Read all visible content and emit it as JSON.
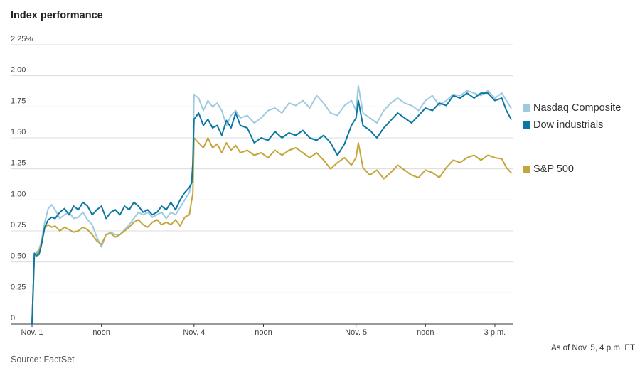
{
  "chart_data": {
    "type": "line",
    "title": "Index performance",
    "xlabel": "",
    "ylabel": "",
    "ylim": [
      0,
      2.25
    ],
    "y_ticks": [
      {
        "value": 0,
        "label": "0"
      },
      {
        "value": 0.25,
        "label": "0.25"
      },
      {
        "value": 0.5,
        "label": "0.50"
      },
      {
        "value": 0.75,
        "label": "0.75"
      },
      {
        "value": 1.0,
        "label": "1.00"
      },
      {
        "value": 1.25,
        "label": "1.25"
      },
      {
        "value": 1.5,
        "label": "1.50"
      },
      {
        "value": 1.75,
        "label": "1.75"
      },
      {
        "value": 2.0,
        "label": "2.00"
      },
      {
        "value": 2.25,
        "label": "2.25%"
      }
    ],
    "x_range": [
      0,
      20.8
    ],
    "x_units": "trading hours since Nov. 1 open",
    "x_ticks": [
      {
        "value": 0,
        "label": "Nov. 1"
      },
      {
        "value": 3.0,
        "label": "noon"
      },
      {
        "value": 7.0,
        "label": "Nov. 4"
      },
      {
        "value": 10.0,
        "label": "noon"
      },
      {
        "value": 14.0,
        "label": "Nov. 5"
      },
      {
        "value": 17.0,
        "label": "noon"
      },
      {
        "value": 20.0,
        "label": "3 p.m."
      }
    ],
    "series": [
      {
        "name": "Nasdaq Composite",
        "color": "#9ecae1",
        "x": [
          0,
          0.1,
          0.2,
          0.3,
          0.4,
          0.55,
          0.7,
          0.85,
          1.0,
          1.2,
          1.4,
          1.6,
          1.8,
          2.0,
          2.2,
          2.4,
          2.6,
          2.8,
          3.0,
          3.2,
          3.4,
          3.6,
          3.8,
          4.0,
          4.2,
          4.4,
          4.6,
          4.8,
          5.0,
          5.2,
          5.4,
          5.6,
          5.8,
          6.0,
          6.2,
          6.4,
          6.6,
          6.8,
          6.9,
          6.95,
          7.0,
          7.2,
          7.4,
          7.6,
          7.8,
          8.0,
          8.2,
          8.4,
          8.6,
          8.8,
          9.0,
          9.3,
          9.6,
          9.9,
          10.2,
          10.5,
          10.8,
          11.1,
          11.4,
          11.7,
          12.0,
          12.3,
          12.6,
          12.9,
          13.2,
          13.5,
          13.8,
          14.0,
          14.1,
          14.3,
          14.6,
          14.9,
          15.2,
          15.5,
          15.8,
          16.1,
          16.4,
          16.7,
          17.0,
          17.3,
          17.6,
          17.9,
          18.2,
          18.5,
          18.8,
          19.1,
          19.4,
          19.7,
          20.0,
          20.3,
          20.5,
          20.7
        ],
        "values": [
          0,
          0.55,
          0.58,
          0.6,
          0.66,
          0.82,
          0.93,
          0.96,
          0.92,
          0.85,
          0.88,
          0.9,
          0.85,
          0.86,
          0.9,
          0.84,
          0.8,
          0.7,
          0.62,
          0.72,
          0.74,
          0.72,
          0.72,
          0.76,
          0.8,
          0.85,
          0.9,
          0.88,
          0.9,
          0.86,
          0.88,
          0.9,
          0.85,
          0.9,
          0.88,
          0.94,
          1.0,
          1.06,
          1.15,
          1.3,
          1.85,
          1.82,
          1.72,
          1.8,
          1.75,
          1.78,
          1.72,
          1.6,
          1.68,
          1.72,
          1.66,
          1.68,
          1.62,
          1.66,
          1.72,
          1.74,
          1.7,
          1.78,
          1.76,
          1.8,
          1.74,
          1.84,
          1.78,
          1.7,
          1.68,
          1.76,
          1.8,
          1.72,
          1.92,
          1.7,
          1.66,
          1.62,
          1.72,
          1.78,
          1.82,
          1.78,
          1.76,
          1.72,
          1.8,
          1.84,
          1.76,
          1.8,
          1.85,
          1.84,
          1.88,
          1.86,
          1.84,
          1.88,
          1.82,
          1.86,
          1.8,
          1.74
        ]
      },
      {
        "name": "Dow industrials",
        "color": "#0a78a3",
        "x": [
          0,
          0.1,
          0.2,
          0.3,
          0.4,
          0.55,
          0.7,
          0.85,
          1.0,
          1.2,
          1.4,
          1.6,
          1.8,
          2.0,
          2.2,
          2.4,
          2.6,
          2.8,
          3.0,
          3.2,
          3.4,
          3.6,
          3.8,
          4.0,
          4.2,
          4.4,
          4.6,
          4.8,
          5.0,
          5.2,
          5.4,
          5.6,
          5.8,
          6.0,
          6.2,
          6.4,
          6.6,
          6.8,
          6.9,
          6.95,
          7.0,
          7.2,
          7.4,
          7.6,
          7.8,
          8.0,
          8.2,
          8.4,
          8.6,
          8.8,
          9.0,
          9.3,
          9.6,
          9.9,
          10.2,
          10.5,
          10.8,
          11.1,
          11.4,
          11.7,
          12.0,
          12.3,
          12.6,
          12.9,
          13.2,
          13.5,
          13.8,
          14.0,
          14.1,
          14.3,
          14.6,
          14.9,
          15.2,
          15.5,
          15.8,
          16.1,
          16.4,
          16.7,
          17.0,
          17.3,
          17.6,
          17.9,
          18.2,
          18.5,
          18.8,
          19.1,
          19.4,
          19.7,
          20.0,
          20.3,
          20.5,
          20.7
        ],
        "values": [
          0,
          0.57,
          0.55,
          0.56,
          0.63,
          0.78,
          0.84,
          0.86,
          0.85,
          0.9,
          0.93,
          0.88,
          0.95,
          0.92,
          0.98,
          0.95,
          0.88,
          0.92,
          0.95,
          0.85,
          0.9,
          0.92,
          0.88,
          0.95,
          0.92,
          0.98,
          0.95,
          0.9,
          0.92,
          0.88,
          0.9,
          0.95,
          0.92,
          0.98,
          0.92,
          1.0,
          1.06,
          1.1,
          1.14,
          1.3,
          1.65,
          1.7,
          1.6,
          1.65,
          1.58,
          1.6,
          1.52,
          1.64,
          1.58,
          1.7,
          1.6,
          1.58,
          1.46,
          1.5,
          1.48,
          1.55,
          1.5,
          1.54,
          1.52,
          1.56,
          1.5,
          1.48,
          1.52,
          1.46,
          1.36,
          1.45,
          1.6,
          1.66,
          1.8,
          1.6,
          1.56,
          1.5,
          1.58,
          1.64,
          1.7,
          1.66,
          1.62,
          1.68,
          1.74,
          1.72,
          1.78,
          1.76,
          1.84,
          1.82,
          1.86,
          1.82,
          1.86,
          1.86,
          1.8,
          1.82,
          1.72,
          1.65
        ]
      },
      {
        "name": "S&P 500",
        "color": "#c4a53a",
        "x": [
          0,
          0.1,
          0.2,
          0.3,
          0.4,
          0.55,
          0.7,
          0.85,
          1.0,
          1.2,
          1.4,
          1.6,
          1.8,
          2.0,
          2.2,
          2.4,
          2.6,
          2.8,
          3.0,
          3.2,
          3.4,
          3.6,
          3.8,
          4.0,
          4.2,
          4.4,
          4.6,
          4.8,
          5.0,
          5.2,
          5.4,
          5.6,
          5.8,
          6.0,
          6.2,
          6.4,
          6.6,
          6.8,
          6.9,
          6.95,
          7.0,
          7.2,
          7.4,
          7.6,
          7.8,
          8.0,
          8.2,
          8.4,
          8.6,
          8.8,
          9.0,
          9.3,
          9.6,
          9.9,
          10.2,
          10.5,
          10.8,
          11.1,
          11.4,
          11.7,
          12.0,
          12.3,
          12.6,
          12.9,
          13.2,
          13.5,
          13.8,
          14.0,
          14.1,
          14.3,
          14.6,
          14.9,
          15.2,
          15.5,
          15.8,
          16.1,
          16.4,
          16.7,
          17.0,
          17.3,
          17.6,
          17.9,
          18.2,
          18.5,
          18.8,
          19.1,
          19.4,
          19.7,
          20.0,
          20.3,
          20.5,
          20.7
        ],
        "values": [
          0,
          0.55,
          0.57,
          0.58,
          0.65,
          0.78,
          0.8,
          0.78,
          0.79,
          0.75,
          0.78,
          0.76,
          0.74,
          0.75,
          0.78,
          0.76,
          0.72,
          0.67,
          0.64,
          0.72,
          0.73,
          0.7,
          0.72,
          0.75,
          0.78,
          0.82,
          0.84,
          0.8,
          0.78,
          0.82,
          0.84,
          0.8,
          0.82,
          0.8,
          0.84,
          0.79,
          0.86,
          0.88,
          1.0,
          1.05,
          1.5,
          1.46,
          1.42,
          1.5,
          1.42,
          1.45,
          1.38,
          1.46,
          1.4,
          1.44,
          1.38,
          1.4,
          1.36,
          1.38,
          1.34,
          1.4,
          1.36,
          1.4,
          1.42,
          1.38,
          1.34,
          1.38,
          1.32,
          1.25,
          1.3,
          1.34,
          1.28,
          1.34,
          1.46,
          1.26,
          1.2,
          1.24,
          1.17,
          1.22,
          1.28,
          1.24,
          1.2,
          1.18,
          1.24,
          1.22,
          1.18,
          1.26,
          1.32,
          1.3,
          1.34,
          1.36,
          1.32,
          1.36,
          1.34,
          1.33,
          1.26,
          1.22
        ]
      }
    ]
  },
  "legend": [
    {
      "label": "Nasdaq Composite",
      "color": "#9ecae1"
    },
    {
      "label": "Dow industrials",
      "color": "#0a78a3"
    },
    {
      "label": "S&P 500",
      "color": "#c4a53a"
    }
  ],
  "footer": {
    "as_of": "As of Nov. 5, 4 p.m. ET",
    "source": "Source: FactSet"
  }
}
